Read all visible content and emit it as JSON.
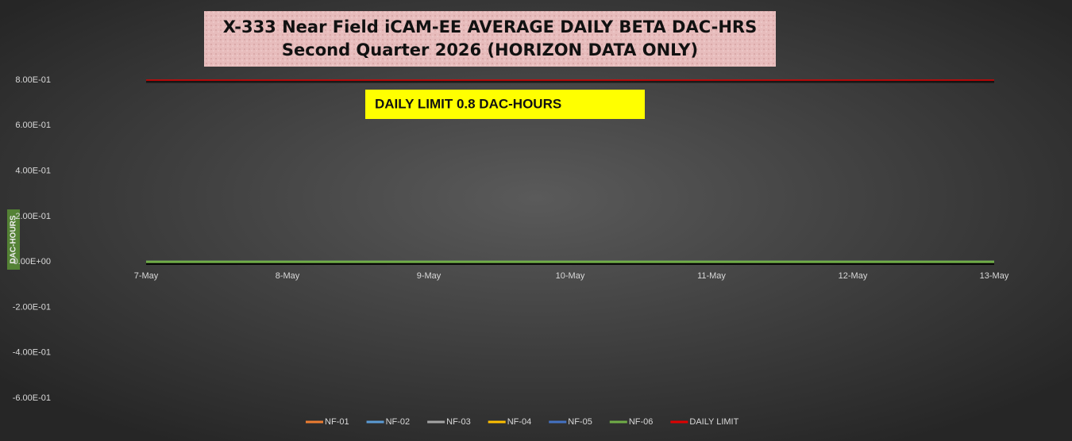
{
  "chart_data": {
    "type": "line",
    "title": "X-333 Near Field iCAM-EE AVERAGE DAILY BETA DAC-HRS",
    "subtitle": "Second Quarter 2026 (HORIZON DATA ONLY)",
    "y_label": "DAC-HOURS",
    "annotation": "DAILY LIMIT 0.8 DAC-HOURS",
    "categories": [
      "7-May",
      "8-May",
      "9-May",
      "10-May",
      "11-May",
      "12-May",
      "13-May"
    ],
    "series": [
      {
        "name": "NF-01",
        "color": "#ed7d31",
        "values": [
          0,
          0,
          0,
          0,
          0,
          0,
          0
        ]
      },
      {
        "name": "NF-02",
        "color": "#5b9bd5",
        "values": [
          0,
          0,
          0,
          0,
          0,
          0,
          0
        ]
      },
      {
        "name": "NF-03",
        "color": "#a5a5a5",
        "values": [
          0,
          0,
          0,
          0,
          0,
          0,
          0
        ]
      },
      {
        "name": "NF-04",
        "color": "#ffc000",
        "values": [
          0,
          0,
          0,
          0,
          0,
          0,
          0
        ]
      },
      {
        "name": "NF-05",
        "color": "#4472c4",
        "values": [
          0,
          0,
          0,
          0,
          0,
          0,
          0
        ]
      },
      {
        "name": "NF-06",
        "color": "#70ad47",
        "values": [
          0,
          0,
          0,
          0,
          0,
          0,
          0
        ]
      },
      {
        "name": "DAILY LIMIT",
        "color": "#e00000",
        "values": [
          0.8,
          0.8,
          0.8,
          0.8,
          0.8,
          0.8,
          0.8
        ]
      }
    ],
    "ylim": [
      -0.6,
      0.8
    ],
    "yticks": [
      {
        "value": 0.8,
        "label": "8.00E-01"
      },
      {
        "value": 0.6,
        "label": "6.00E-01"
      },
      {
        "value": 0.4,
        "label": "4.00E-01"
      },
      {
        "value": 0.2,
        "label": "2.00E-01"
      },
      {
        "value": 0,
        "label": "0.00E+00"
      },
      {
        "value": -0.2,
        "label": "-2.00E-01"
      },
      {
        "value": -0.4,
        "label": "-4.00E-01"
      },
      {
        "value": -0.6,
        "label": "-6.00E-01"
      }
    ],
    "grid": false,
    "legend": "bottom"
  }
}
